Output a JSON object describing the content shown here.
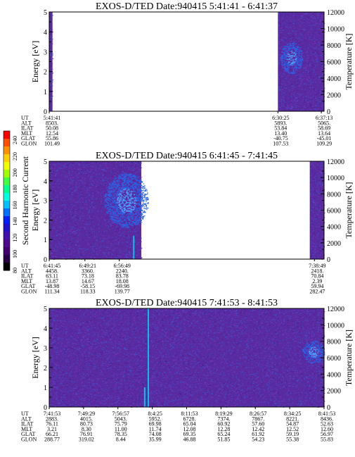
{
  "colors": {
    "background": "#5a2aa0",
    "speckle_blue": "#3a5ad0",
    "speckle_violet": "#7a3ac8",
    "bright_blue": "#2a64e8",
    "streak_cyan": "#00d8f0"
  },
  "colorbar": {
    "label": "Second Harmonic Current",
    "ticks": [
      "240",
      "220",
      "200",
      "180",
      "160",
      "140",
      "120",
      "100",
      "80"
    ],
    "colors": [
      "#ff0000",
      "#ff5000",
      "#ff9000",
      "#ffd000",
      "#f0ff00",
      "#a0ff00",
      "#40ff40",
      "#00ff90",
      "#00ffe0",
      "#00c0ff",
      "#0070ff",
      "#0020ff",
      "#2010d0",
      "#4010b0",
      "#500890",
      "#400070",
      "#280048",
      "#000000"
    ]
  },
  "panels": [
    {
      "title": "EXOS-D/TED   Date:940415  5:41:41 - 6:41:37",
      "ylabel": "Energy [eV]",
      "y2label": "Temperature [K]",
      "ylim": [
        0,
        5
      ],
      "yticks": [
        "0",
        "1",
        "2",
        "3",
        "4",
        "5"
      ],
      "y2lim": [
        0,
        12000
      ],
      "y2ticks": [
        "0",
        "2000",
        "4000",
        "6000",
        "8000",
        "10000",
        "12000"
      ],
      "data_segments": [
        [
          0.0,
          0.012
        ],
        [
          0.832,
          1.0
        ]
      ],
      "bright_blobs": [
        {
          "t": 0.88,
          "e": 2.7,
          "spread_t": 0.04,
          "spread_e": 0.8
        }
      ],
      "streaks": [],
      "orbit_labels": [
        "UT",
        "ALT",
        "ILAT",
        "MLT",
        "GLAT",
        "GLON"
      ],
      "orbit_columns": [
        {
          "f": 0.0,
          "vals": [
            "5:41:41",
            "8503.",
            "50.08",
            "12.54",
            "55.86",
            "101.49"
          ]
        },
        {
          "f": 0.832,
          "vals": [
            "6:30:25",
            "5893.",
            "53.84",
            "13.40",
            "-40.75",
            "107.53"
          ]
        },
        {
          "f": 0.99,
          "vals": [
            "6:37:13",
            "5065.",
            "58.69",
            "13.64",
            "-45.01",
            "109.29"
          ]
        }
      ]
    },
    {
      "title": "EXOS-D/TED   Date:940415  6:41:45 - 7:41:45",
      "ylabel": "Energy [eV]",
      "y2label": "Temperature [K]",
      "ylim": [
        0,
        5
      ],
      "yticks": [
        "0",
        "1",
        "2",
        "3",
        "4",
        "5"
      ],
      "y2lim": [
        0,
        12000
      ],
      "y2ticks": [
        "0",
        "2000",
        "4000",
        "6000",
        "8000",
        "10000",
        "12000"
      ],
      "data_segments": [
        [
          0.0,
          0.335
        ],
        [
          0.948,
          1.0
        ]
      ],
      "bright_blobs": [
        {
          "t": 0.28,
          "e": 3.0,
          "spread_t": 0.08,
          "spread_e": 1.4
        }
      ],
      "streaks": [
        {
          "t": 0.305,
          "e0": 0.0,
          "e1": 1.2
        }
      ],
      "orbit_labels": [
        "UT",
        "ALT",
        "ILAT",
        "MLT",
        "GLAT",
        "GLON"
      ],
      "orbit_columns": [
        {
          "f": 0.0,
          "vals": [
            "6:41:45",
            "4458.",
            "63.11",
            "13.87",
            "-48.98",
            "111.34"
          ]
        },
        {
          "f": 0.13,
          "vals": [
            "6:49:21",
            "3360.",
            "73.18",
            "14.67",
            "-58.15",
            "118.33"
          ]
        },
        {
          "f": 0.255,
          "vals": [
            "6:56:49",
            "2240.",
            "83.78",
            "18.08",
            "-69.98",
            "139.77"
          ]
        },
        {
          "f": 0.965,
          "vals": [
            "7:38:49",
            "2418.",
            "70.84",
            "2.39",
            "59.94",
            "282.47"
          ]
        }
      ]
    },
    {
      "title": "EXOS-D/TED   Date:940415  7:41:53 - 8:41:53",
      "ylabel": "Energy [eV]",
      "y2label": "Temperature [K]",
      "ylim": [
        0,
        5
      ],
      "yticks": [
        "0",
        "1",
        "2",
        "3",
        "4",
        "5"
      ],
      "y2lim": [
        0,
        12000
      ],
      "y2ticks": [
        "0",
        "2000",
        "4000",
        "6000",
        "8000",
        "10000",
        "12000"
      ],
      "data_segments": [
        [
          0.0,
          1.0
        ]
      ],
      "bright_blobs": [
        {
          "t": 0.96,
          "e": 2.8,
          "spread_t": 0.04,
          "spread_e": 0.6
        }
      ],
      "streaks": [
        {
          "t": 0.358,
          "e0": 0.0,
          "e1": 5.0
        },
        {
          "t": 0.345,
          "e0": 0.0,
          "e1": 1.0
        }
      ],
      "orbit_labels": [
        "UT",
        "ALT",
        "ILAT",
        "MLT",
        "GLAT",
        "GLON"
      ],
      "orbit_columns": [
        {
          "f": 0.0,
          "vals": [
            "7:41:53",
            "2883.",
            "76.11",
            "3.21",
            "66.21",
            "288.77"
          ]
        },
        {
          "f": 0.125,
          "vals": [
            "7:49:29",
            "4015.",
            "80.73",
            "8.30",
            "76.91",
            "319.02"
          ]
        },
        {
          "f": 0.25,
          "vals": [
            "7:56:57",
            "5043.",
            "75.79",
            "11.00",
            "78.35",
            "8.44"
          ]
        },
        {
          "f": 0.375,
          "vals": [
            "8:4:25",
            "5952.",
            "69.98",
            "11.74",
            "74.08",
            "35.99"
          ]
        },
        {
          "f": 0.5,
          "vals": [
            "8:11:53",
            "6728.",
            "65.04",
            "12.08",
            "69.35",
            "46.88"
          ]
        },
        {
          "f": 0.625,
          "vals": [
            "8:19:29",
            "7374.",
            "60.92",
            "12.28",
            "65.24",
            "51.85"
          ]
        },
        {
          "f": 0.75,
          "vals": [
            "8:26:57",
            "7867.",
            "57.60",
            "12.42",
            "61.92",
            "54.23"
          ]
        },
        {
          "f": 0.875,
          "vals": [
            "8:34:25",
            "8221.",
            "54.87",
            "12.52",
            "59.19",
            "55.38"
          ]
        },
        {
          "f": 1.0,
          "vals": [
            "8:41:53",
            "8436.",
            "52.63",
            "12.60",
            "56.97",
            "55.83"
          ]
        }
      ]
    }
  ]
}
